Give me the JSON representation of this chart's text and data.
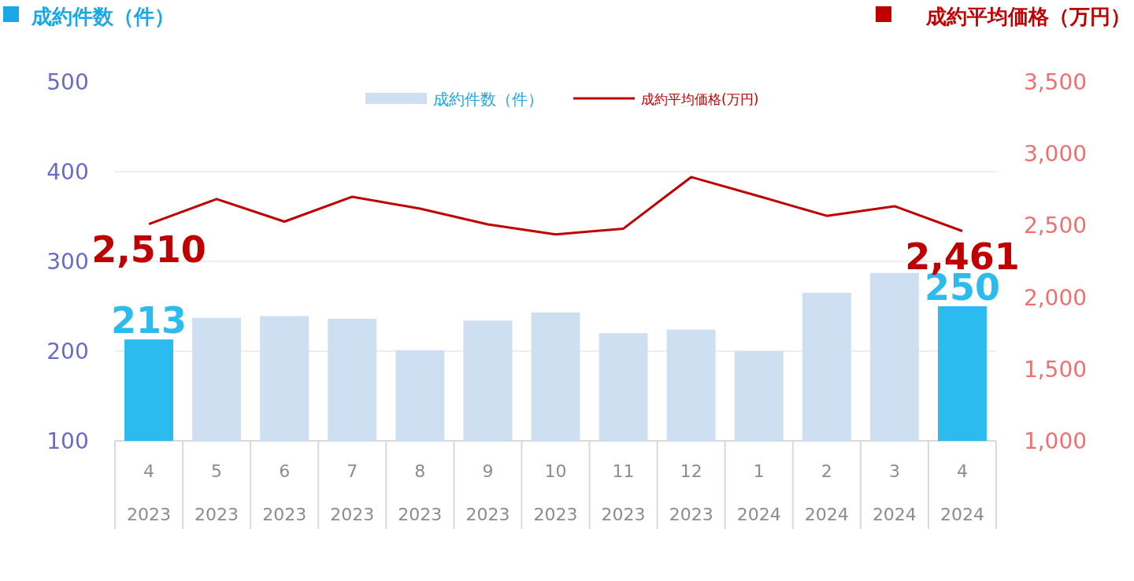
{
  "chart_data": {
    "type": "bar",
    "ylabel": "成約件数（件）",
    "y2label": "成約平均価格（万円）",
    "categories": [
      "4\n2023",
      "5\n2023",
      "6\n2023",
      "7\n2023",
      "8\n2023",
      "9\n2023",
      "10\n2023",
      "11\n2023",
      "12\n2023",
      "1\n2024",
      "2\n2024",
      "3\n2024",
      "4\n2024"
    ],
    "series": [
      {
        "name": "成約件数（件）",
        "color": "#cfdff2",
        "colors": [
          "#2bbbee",
          "#cfdff2",
          "#cfdff2",
          "#cfdff2",
          "#cfdff2",
          "#cfdff2",
          "#cfdff2",
          "#cfdff2",
          "#cfdff2",
          "#cfdff2",
          "#cfdff2",
          "#cfdff2",
          "#2bbbee"
        ],
        "values": [
          213,
          237,
          239,
          236,
          201,
          234,
          243,
          220,
          224,
          200,
          265,
          287,
          250
        ],
        "value_labels": [
          "213",
          null,
          null,
          null,
          null,
          null,
          null,
          null,
          null,
          null,
          null,
          null,
          "250"
        ]
      },
      {
        "name": "成約平均価格(万円)",
        "type": "line",
        "axis": "y2",
        "color": "#c00000",
        "values": [
          2510,
          2684,
          2527,
          2700,
          2617,
          2508,
          2438,
          2478,
          2837,
          2704,
          2567,
          2634,
          2461
        ],
        "value_labels": [
          "2,510",
          null,
          null,
          null,
          null,
          null,
          null,
          null,
          null,
          null,
          null,
          null,
          "2,461"
        ]
      }
    ],
    "ylim": [
      100,
      500
    ],
    "yticks": [
      100,
      200,
      300,
      400,
      500
    ],
    "y2lim": [
      1000,
      3500
    ],
    "y2ticks": [
      {
        "value": 1000,
        "label": "1,000"
      },
      {
        "value": 1500,
        "label": "1,500"
      },
      {
        "value": 2000,
        "label": "2,000"
      },
      {
        "value": 2500,
        "label": "2,500"
      },
      {
        "value": 3000,
        "label": "3,000"
      },
      {
        "value": 3500,
        "label": "3,500"
      }
    ],
    "grid": "y",
    "legend": "top"
  }
}
